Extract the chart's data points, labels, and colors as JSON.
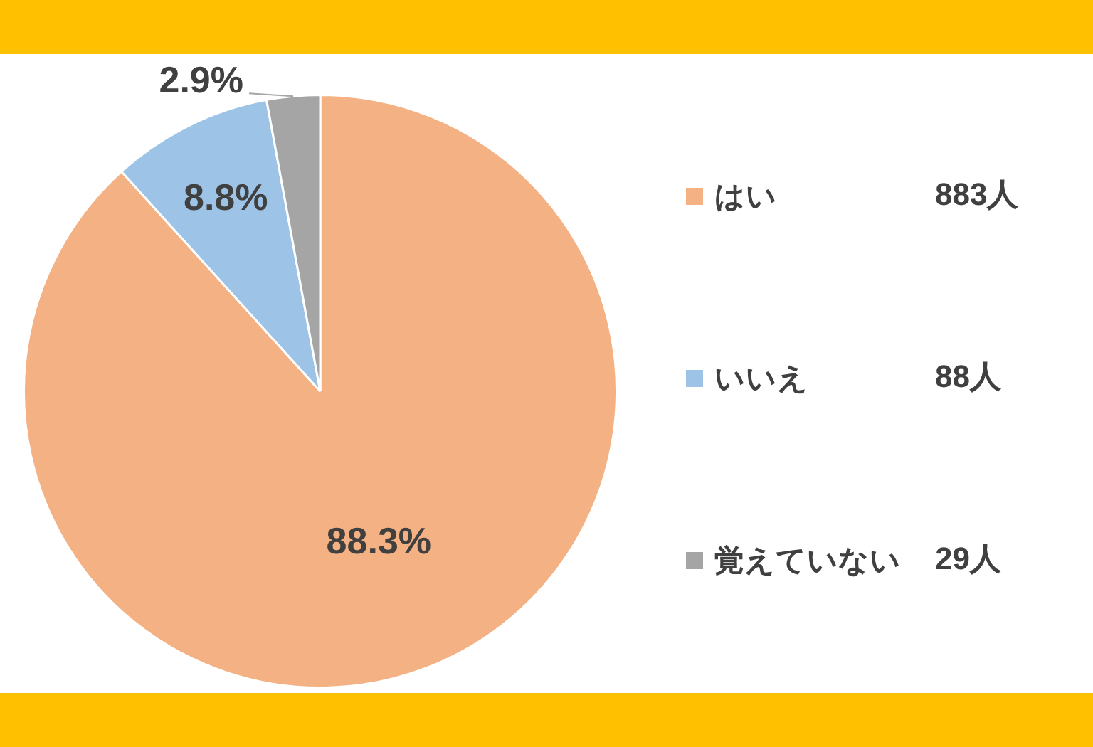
{
  "chart_data": {
    "type": "pie",
    "categories": [
      "はい",
      "いいえ",
      "覚えていない"
    ],
    "values": [
      88.3,
      8.8,
      2.9
    ],
    "colors": [
      "#f4b183",
      "#9dc3e6",
      "#a5a5a5"
    ],
    "value_labels": [
      "88.3%",
      "8.8%",
      "2.9%"
    ],
    "annotations": [
      "883人",
      "88人",
      "29人"
    ],
    "legend": "right"
  }
}
